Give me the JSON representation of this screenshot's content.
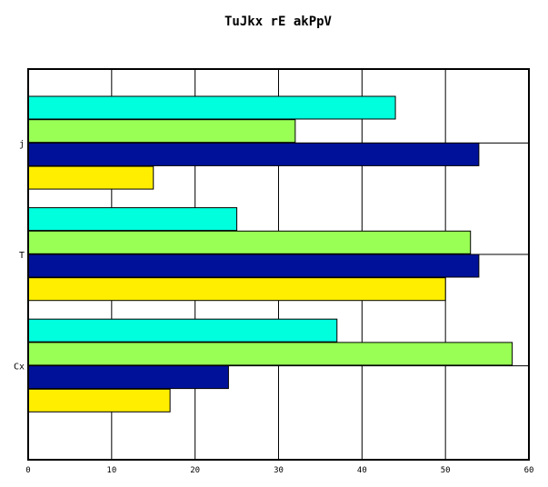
{
  "chart_data": {
    "type": "bar",
    "orientation": "horizontal",
    "title": "TuJkx rE akPpV",
    "xlabel": "",
    "ylabel": "",
    "categories": [
      "j",
      "T",
      "Cx"
    ],
    "x_ticks": [
      "0",
      "10",
      "20",
      "30",
      "40",
      "50",
      "60"
    ],
    "xlim": [
      0,
      60
    ],
    "grid": true,
    "series": [
      {
        "color": "#00ffdd",
        "values": [
          44,
          25,
          37
        ]
      },
      {
        "color": "#99ff55",
        "values": [
          32,
          53,
          58
        ]
      },
      {
        "color": "#001199",
        "values": [
          54,
          54,
          24
        ]
      },
      {
        "color": "#ffee00",
        "values": [
          15,
          50,
          17
        ]
      }
    ]
  }
}
